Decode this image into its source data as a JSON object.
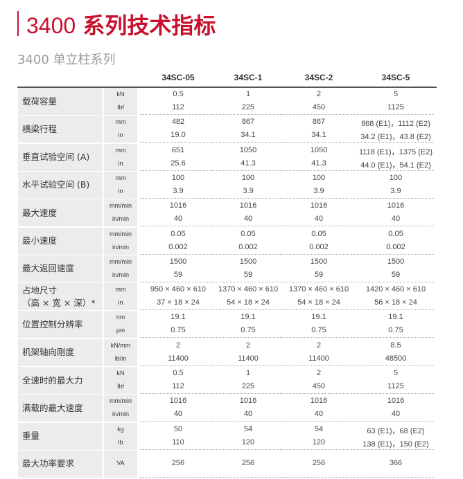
{
  "title": {
    "num": "3400",
    "cn": "系列技术指标"
  },
  "subtitle": "3400 单立柱系列",
  "columns": [
    "34SC-05",
    "34SC-1",
    "34SC-2",
    "34SC-5"
  ],
  "rows": [
    {
      "label": "载荷容量",
      "units": [
        "kN",
        "lbf"
      ],
      "values": [
        [
          "0.5",
          "1",
          "2",
          "5"
        ],
        [
          "112",
          "225",
          "450",
          "1125"
        ]
      ]
    },
    {
      "label": "横梁行程",
      "units": [
        "mm",
        "in"
      ],
      "values": [
        [
          "482",
          "867",
          "867",
          "868 (E1)，1112 (E2)"
        ],
        [
          "19.0",
          "34.1",
          "34.1",
          "34.2 (E1)，43.8 (E2)"
        ]
      ]
    },
    {
      "label": "垂直试验空间 (A)",
      "units": [
        "mm",
        "in"
      ],
      "values": [
        [
          "651",
          "1050",
          "1050",
          "1118 (E1)，1375 (E2)"
        ],
        [
          "25.6",
          "41.3",
          "41.3",
          "44.0 (E1)，54.1 (E2)"
        ]
      ]
    },
    {
      "label": "水平试验空间 (B)",
      "units": [
        "mm",
        "in"
      ],
      "values": [
        [
          "100",
          "100",
          "100",
          "100"
        ],
        [
          "3.9",
          "3.9",
          "3.9",
          "3.9"
        ]
      ]
    },
    {
      "label": "最大速度",
      "units": [
        "mm/min",
        "in/min"
      ],
      "values": [
        [
          "1016",
          "1016",
          "1016",
          "1016"
        ],
        [
          "40",
          "40",
          "40",
          "40"
        ]
      ]
    },
    {
      "label": "最小速度",
      "units": [
        "mm/min",
        "in/min"
      ],
      "values": [
        [
          "0.05",
          "0.05",
          "0.05",
          "0.05"
        ],
        [
          "0.002",
          "0.002",
          "0.002",
          "0.002"
        ]
      ]
    },
    {
      "label": "最大返回速度",
      "units": [
        "mm/min",
        "in/min"
      ],
      "values": [
        [
          "1500",
          "1500",
          "1500",
          "1500"
        ],
        [
          "59",
          "59",
          "59",
          "59"
        ]
      ]
    },
    {
      "label": "占地尺寸\n（高 × 宽 × 深）*",
      "units": [
        "mm",
        "in"
      ],
      "values": [
        [
          "950 × 460 × 610",
          "1370 × 460 × 610",
          "1370 × 460 × 610",
          "1420 × 460 × 610"
        ],
        [
          "37 × 18 × 24",
          "54 × 18 × 24",
          "54 × 18 × 24",
          "56 × 18 × 24"
        ]
      ]
    },
    {
      "label": "位置控制分辨率",
      "units": [
        "nm",
        "µin"
      ],
      "values": [
        [
          "19.1",
          "19.1",
          "19.1",
          "19.1"
        ],
        [
          "0.75",
          "0.75",
          "0.75",
          "0.75"
        ]
      ]
    },
    {
      "label": "机架轴向刚度",
      "units": [
        "kN/mm",
        "lb/in"
      ],
      "values": [
        [
          "2",
          "2",
          "2",
          "8.5"
        ],
        [
          "11400",
          "11400",
          "11400",
          "48500"
        ]
      ]
    },
    {
      "label": "全速时的最大力",
      "units": [
        "kN",
        "lbf"
      ],
      "values": [
        [
          "0.5",
          "1",
          "2",
          "5"
        ],
        [
          "112",
          "225",
          "450",
          "1125"
        ]
      ]
    },
    {
      "label": "满载的最大速度",
      "units": [
        "mm/min",
        "in/min"
      ],
      "values": [
        [
          "1016",
          "1016",
          "1016",
          "1016"
        ],
        [
          "40",
          "40",
          "40",
          "40"
        ]
      ]
    },
    {
      "label": "重量",
      "units": [
        "kg",
        "lb"
      ],
      "values": [
        [
          "50",
          "54",
          "54",
          "63 (E1)，68 (E2)"
        ],
        [
          "110",
          "120",
          "120",
          "138 (E1)，150 (E2)"
        ]
      ]
    },
    {
      "label": "最大功率要求",
      "units": [
        "VA"
      ],
      "values": [
        [
          "256",
          "256",
          "256",
          "366"
        ]
      ]
    }
  ]
}
